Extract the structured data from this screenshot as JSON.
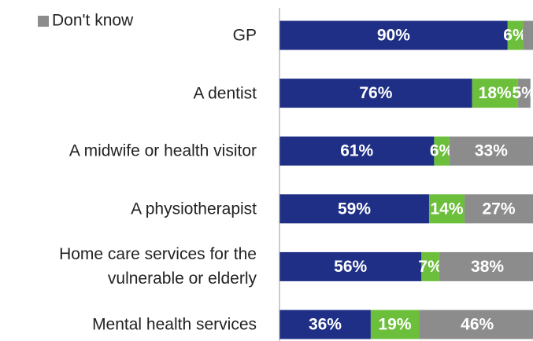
{
  "chart_data": {
    "type": "stacked_barh",
    "categories": [
      "GP",
      "A dentist",
      "A midwife or health visitor",
      "A physiotherapist",
      "Home care services for the vulnerable or elderly",
      "Mental health services"
    ],
    "series": [
      {
        "color": "#1f2f86",
        "values": [
          90,
          76,
          61,
          59,
          56,
          36
        ],
        "value_labels": [
          "90%",
          "76%",
          "61%",
          "59%",
          "56%",
          "36%"
        ]
      },
      {
        "color": "#6cbf3a",
        "values": [
          6,
          18,
          6,
          14,
          7,
          19
        ],
        "value_labels": [
          "6%",
          "18%",
          "6%",
          "14%",
          "7%",
          "19%"
        ]
      },
      {
        "name": "Don't know",
        "color": "#8c8c8c",
        "values": [
          4,
          5,
          33,
          27,
          38,
          46
        ],
        "value_labels": [
          null,
          "5%",
          "33%",
          "27%",
          "38%",
          "46%"
        ]
      }
    ],
    "xlim": [
      0,
      100
    ]
  }
}
